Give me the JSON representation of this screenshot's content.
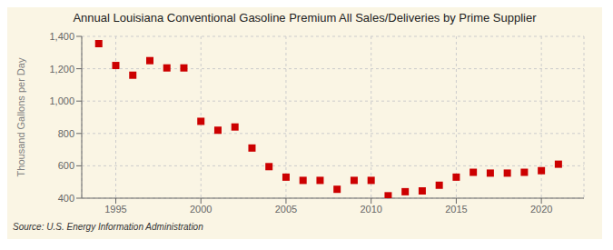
{
  "chart_data": {
    "type": "scatter",
    "title": "Annual Louisiana Conventional Gasoline Premium All Sales/Deliveries by Prime Supplier",
    "ylabel": "Thousand Gallons per Day",
    "annotations": [
      "Source: U.S. Energy Information Administration"
    ],
    "x": [
      1994,
      1995,
      1996,
      1997,
      1998,
      1999,
      2000,
      2001,
      2002,
      2003,
      2004,
      2005,
      2006,
      2007,
      2008,
      2009,
      2010,
      2011,
      2012,
      2013,
      2014,
      2015,
      2016,
      2017,
      2018,
      2019,
      2020,
      2021
    ],
    "values": [
      1355,
      1220,
      1160,
      1250,
      1205,
      1205,
      875,
      820,
      840,
      710,
      595,
      530,
      510,
      510,
      455,
      510,
      510,
      415,
      440,
      445,
      480,
      530,
      560,
      555,
      555,
      560,
      570,
      610
    ],
    "color": "#cc0000",
    "marker": "square",
    "xlim": [
      1993.0,
      2022.5
    ],
    "ylim": [
      400,
      1400
    ],
    "xticks": [
      1995,
      2000,
      2005,
      2010,
      2015,
      2020
    ],
    "yticks": [
      400,
      600,
      800,
      {
        "value": 1000,
        "label": "1,000"
      },
      {
        "value": 1200,
        "label": "1,200"
      },
      {
        "value": 1400,
        "label": "1,400"
      }
    ],
    "grid": true
  }
}
